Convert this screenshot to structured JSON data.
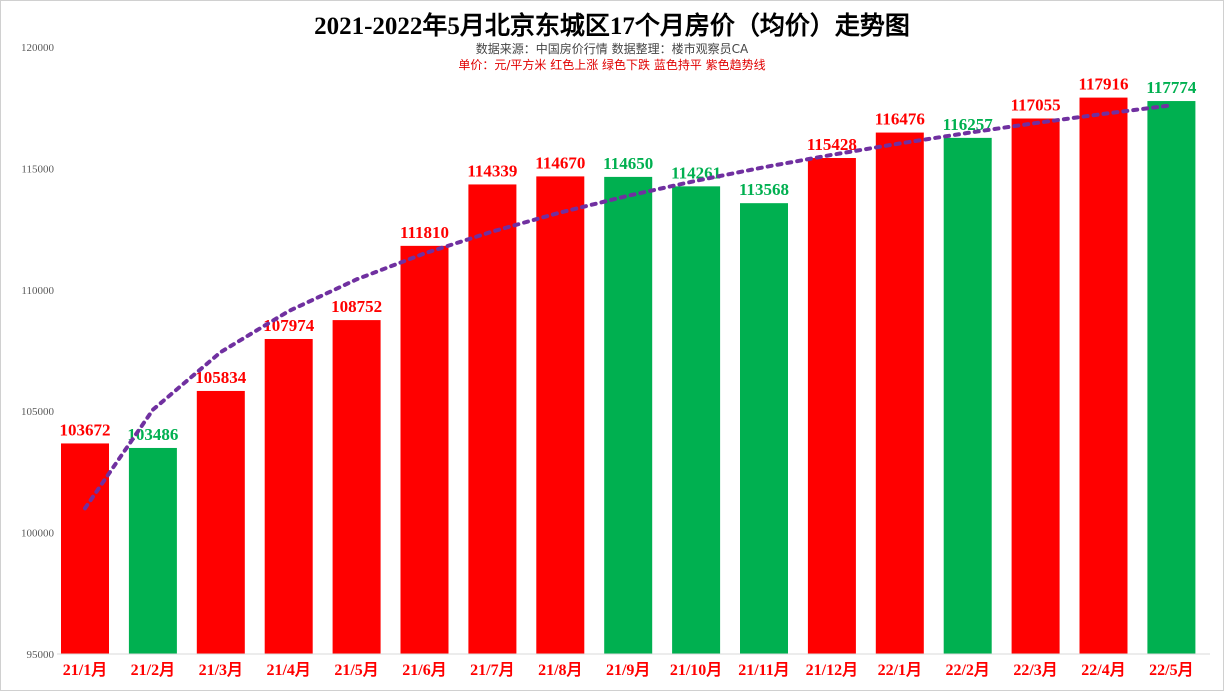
{
  "chart_data": {
    "type": "bar",
    "title": "2021-2022年5月北京东城区17个月房价（均价）走势图",
    "subtitle1": "数据来源：中国房价行情      数据整理：楼市观察员CA",
    "subtitle2": "单价：元/平方米    红色上涨  绿色下跌   蓝色持平  紫色趋势线",
    "xlabel": "",
    "ylabel": "",
    "ylim": [
      95000,
      120000
    ],
    "yticks": [
      95000,
      100000,
      105000,
      110000,
      115000,
      120000
    ],
    "ytick_labels": [
      "95000",
      "100000",
      "105000",
      "110000",
      "115000",
      "120000"
    ],
    "categories": [
      "21/1月",
      "21/2月",
      "21/3月",
      "21/4月",
      "21/5月",
      "21/6月",
      "21/7月",
      "21/8月",
      "21/9月",
      "21/10月",
      "21/11月",
      "21/12月",
      "22/1月",
      "22/2月",
      "22/3月",
      "22/4月",
      "22/5月"
    ],
    "values": [
      103672,
      103486,
      105834,
      107974,
      108752,
      111810,
      114339,
      114670,
      114650,
      114261,
      113568,
      115428,
      116476,
      116257,
      117055,
      117916,
      117774
    ],
    "direction": [
      "up",
      "down",
      "up",
      "up",
      "up",
      "up",
      "up",
      "up",
      "down",
      "down",
      "down",
      "up",
      "up",
      "down",
      "up",
      "up",
      "down"
    ],
    "trendline": {
      "type": "logarithmic",
      "values": [
        101000,
        105061,
        107437,
        109122,
        110430,
        111498,
        112401,
        113184,
        113874,
        114491,
        115049,
        115559,
        116028,
        116462,
        116867,
        117245,
        117600
      ]
    },
    "colors": {
      "up": "#ff0000",
      "down": "#00b050",
      "flat": "#0070c0",
      "trend": "#7030a0"
    },
    "grid": false
  }
}
